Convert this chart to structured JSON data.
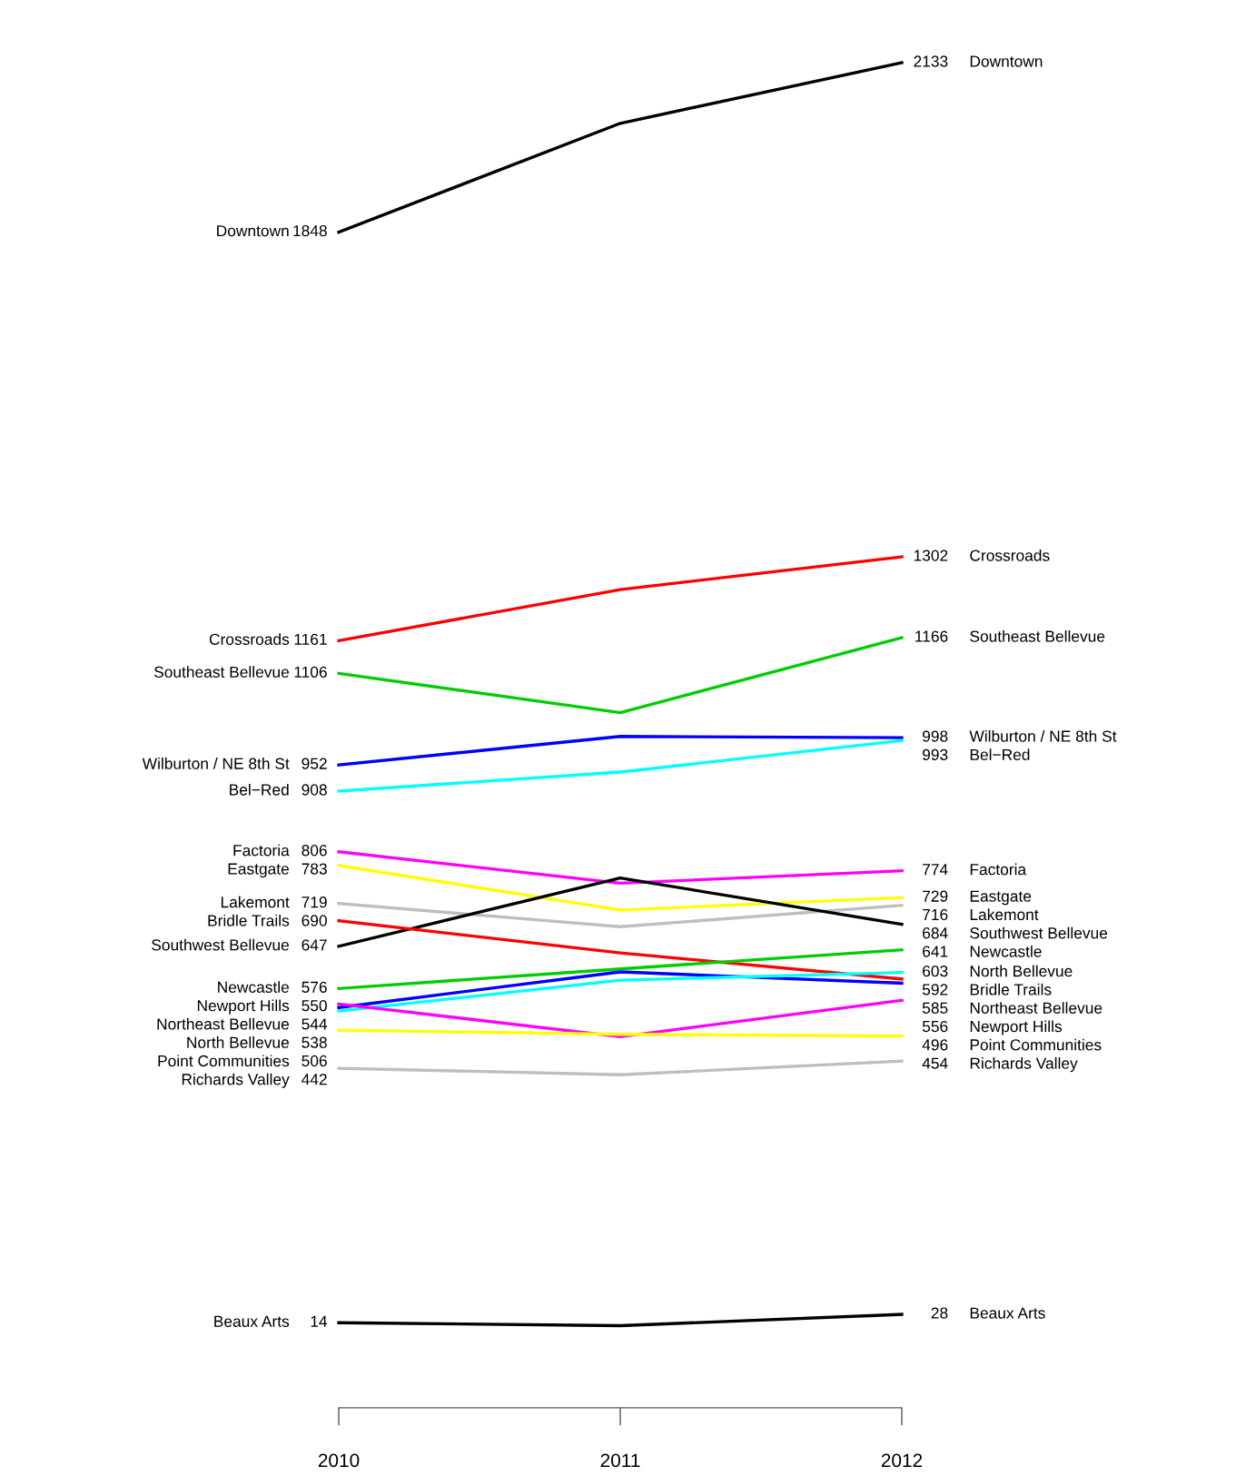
{
  "chart_data": {
    "type": "line",
    "categories": [
      "2010",
      "2011",
      "2012"
    ],
    "legend": false,
    "grid": false,
    "marker": "none",
    "line_style": "solid",
    "tick_labels": "x",
    "series": [
      {
        "name": "Downtown",
        "color": "#000000",
        "values": [
          1848,
          2031,
          2133
        ],
        "value_labels": [
          "1848",
          null,
          "2133"
        ]
      },
      {
        "name": "Crossroads",
        "color": "#ff0000",
        "values": [
          1161,
          1247,
          1302
        ],
        "value_labels": [
          "1161",
          null,
          "1302"
        ]
      },
      {
        "name": "Southeast Bellevue",
        "color": "#00cd00",
        "values": [
          1106,
          1040,
          1166
        ],
        "value_labels": [
          "1106",
          null,
          "1166"
        ]
      },
      {
        "name": "Wilburton / NE 8th St",
        "color": "#0000ff",
        "values": [
          952,
          1000,
          998
        ],
        "value_labels": [
          "952",
          null,
          "998"
        ]
      },
      {
        "name": "Bel−Red",
        "color": "#00ffff",
        "values": [
          908,
          940,
          993
        ],
        "value_labels": [
          "908",
          null,
          "993"
        ]
      },
      {
        "name": "Factoria",
        "color": "#ff00ff",
        "values": [
          806,
          753,
          774
        ],
        "value_labels": [
          "806",
          null,
          "774"
        ]
      },
      {
        "name": "Eastgate",
        "color": "#ffff00",
        "values": [
          783,
          708,
          729
        ],
        "value_labels": [
          "783",
          null,
          "729"
        ]
      },
      {
        "name": "Lakemont",
        "color": "#bebebe",
        "values": [
          719,
          680,
          716
        ],
        "value_labels": [
          "719",
          null,
          "716"
        ]
      },
      {
        "name": "Southwest Bellevue",
        "color": "#000000",
        "values": [
          647,
          762,
          684
        ],
        "value_labels": [
          "647",
          null,
          "684"
        ]
      },
      {
        "name": "Bridle Trails",
        "color": "#ff0000",
        "values": [
          690,
          636,
          592
        ],
        "value_labels": [
          "690",
          null,
          "592"
        ]
      },
      {
        "name": "Newcastle",
        "color": "#00cd00",
        "values": [
          576,
          609,
          641
        ],
        "value_labels": [
          "576",
          null,
          "641"
        ]
      },
      {
        "name": "Northeast Bellevue",
        "color": "#0000ff",
        "values": [
          544,
          604,
          585
        ],
        "value_labels": [
          "544",
          null,
          "585"
        ]
      },
      {
        "name": "North Bellevue",
        "color": "#00ffff",
        "values": [
          538,
          590,
          603
        ],
        "value_labels": [
          "538",
          null,
          "603"
        ]
      },
      {
        "name": "Newport Hills",
        "color": "#ff00ff",
        "values": [
          550,
          495,
          556
        ],
        "value_labels": [
          "550",
          null,
          "556"
        ]
      },
      {
        "name": "Point Communities",
        "color": "#ffff00",
        "values": [
          506,
          499,
          496
        ],
        "value_labels": [
          "506",
          null,
          "496"
        ]
      },
      {
        "name": "Richards Valley",
        "color": "#bebebe",
        "values": [
          442,
          431,
          454
        ],
        "value_labels": [
          "442",
          null,
          "454"
        ]
      },
      {
        "name": "Beaux Arts",
        "color": "#000000",
        "values": [
          14,
          9,
          28
        ],
        "value_labels": [
          "14",
          null,
          "28"
        ]
      }
    ]
  }
}
